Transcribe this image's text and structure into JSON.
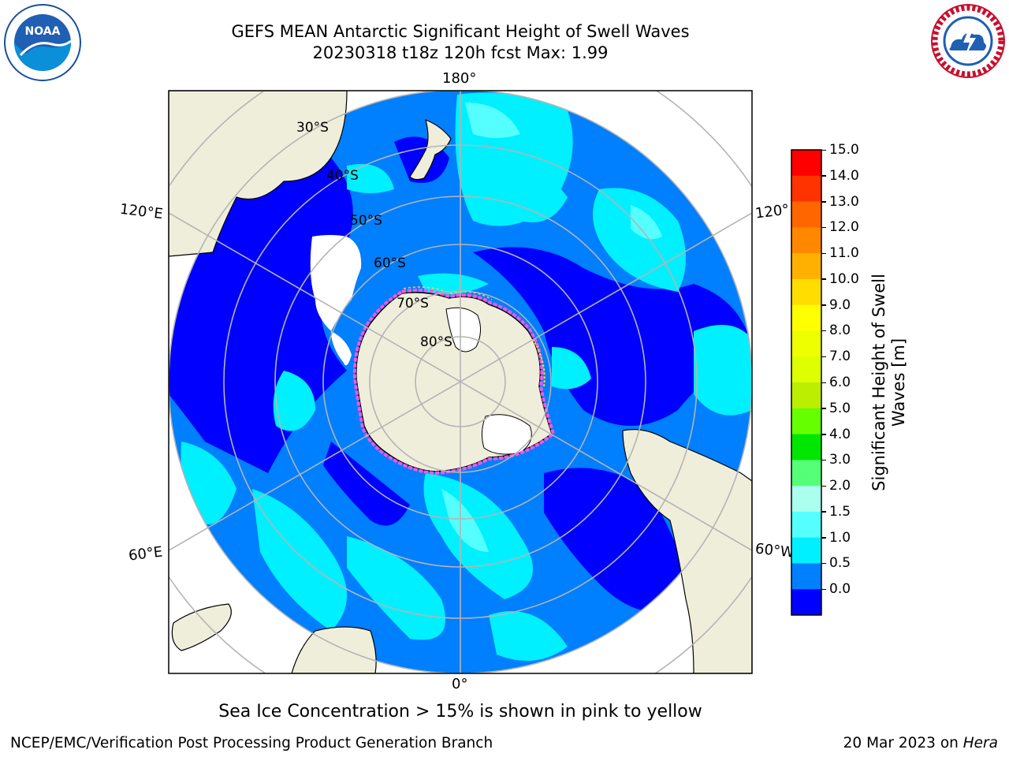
{
  "title": {
    "line1": "GEFS MEAN Antarctic Significant Height of Swell Waves",
    "line2": "20230318 t18z 120h fcst   Max: 1.99"
  },
  "logos": {
    "left": "noaa-logo",
    "left_text": "NOAA",
    "right": "nws-logo"
  },
  "map": {
    "projection": "south-polar-stereographic",
    "longitude_labels": [
      "180°",
      "120°E",
      "120°",
      "60°E",
      "60°W",
      "0°"
    ],
    "latitude_labels": [
      "30°S",
      "40°S",
      "50°S",
      "60°S",
      "70°S",
      "80°S"
    ],
    "colors": {
      "land": "#efeedb",
      "coastline": "#000000",
      "grid": "#b4b4b4",
      "ice_pink": "#ff55dd",
      "ice_yellow": "#ffd23c"
    }
  },
  "colorbar": {
    "label": "Significant Height of Swell Waves [m]",
    "label_line1": "Significant Height of Swell",
    "label_line2": "Waves [m]",
    "ticks": [
      "15.0",
      "14.0",
      "13.0",
      "12.0",
      "11.0",
      "10.0",
      "9.0",
      "8.0",
      "7.0",
      "6.0",
      "5.0",
      "4.0",
      "3.0",
      "2.0",
      "1.5",
      "1.0",
      "0.5",
      "0.0"
    ],
    "colors": [
      "#ff0000",
      "#ff3300",
      "#ff6600",
      "#ff8800",
      "#ffb000",
      "#ffdd00",
      "#ffff00",
      "#eeff00",
      "#ddff00",
      "#bbee00",
      "#66ff00",
      "#00e600",
      "#55ff77",
      "#aaffee",
      "#55ffff",
      "#00f0ff",
      "#007fff",
      "#0000ff"
    ]
  },
  "caption": "Sea Ice Concentration > 15% is shown in pink to yellow",
  "footer": {
    "left": "NCEP/EMC/Verification Post Processing Product Generation Branch",
    "right_date": "20 Mar 2023 on ",
    "right_host": "Hera"
  }
}
